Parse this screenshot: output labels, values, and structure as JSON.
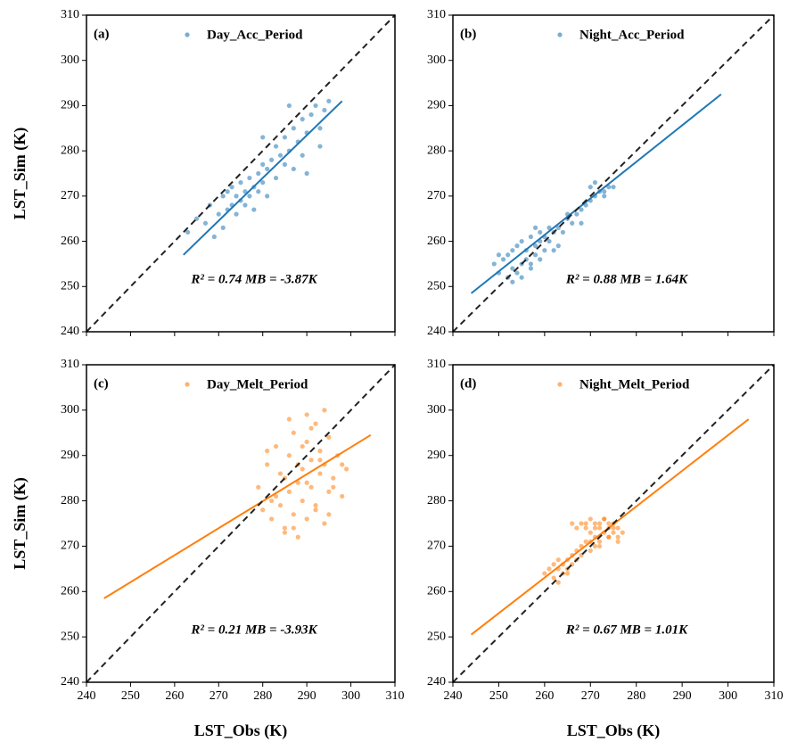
{
  "chart_data": [
    {
      "type": "scatter",
      "panel_label": "(a)",
      "ylabel": "LST_Sim (K)",
      "annotation": "R² = 0.74   MB = -3.87K",
      "xlim": [
        240,
        310
      ],
      "ylim": [
        240,
        310
      ],
      "xticks": [
        240,
        250,
        260,
        270,
        280,
        290,
        300,
        310
      ],
      "yticks": [
        240,
        250,
        260,
        270,
        280,
        290,
        300,
        310
      ],
      "xtick_labels": false,
      "diagonal": true,
      "series": [
        {
          "name": "Day_Acc_Period",
          "color": "#1f77b4",
          "x": [
            263,
            265,
            267,
            268,
            270,
            271,
            272,
            272,
            273,
            273,
            274,
            274,
            275,
            275,
            276,
            276,
            277,
            277,
            278,
            278,
            279,
            279,
            280,
            280,
            281,
            281,
            282,
            283,
            283,
            284,
            285,
            285,
            286,
            287,
            287,
            288,
            289,
            289,
            290,
            291,
            292,
            293,
            294,
            295,
            269,
            271,
            286,
            290,
            293,
            280
          ],
          "y": [
            262,
            265,
            264,
            268,
            266,
            270,
            267,
            271,
            268,
            272,
            266,
            270,
            269,
            273,
            268,
            271,
            270,
            274,
            272,
            267,
            275,
            271,
            273,
            277,
            276,
            270,
            278,
            274,
            281,
            279,
            277,
            283,
            280,
            285,
            276,
            282,
            287,
            279,
            284,
            288,
            290,
            285,
            289,
            291,
            261,
            263,
            290,
            275,
            281,
            283
          ]
        }
      ],
      "fit": {
        "x": [
          262,
          298
        ],
        "y": [
          257,
          291
        ]
      }
    },
    {
      "type": "scatter",
      "panel_label": "(b)",
      "annotation": "R² = 0.88   MB = 1.64K",
      "xlim": [
        240,
        310
      ],
      "ylim": [
        240,
        310
      ],
      "xticks": [
        240,
        250,
        260,
        270,
        280,
        290,
        300,
        310
      ],
      "yticks": [
        240,
        250,
        260,
        270,
        280,
        290,
        300,
        310
      ],
      "xtick_labels": false,
      "diagonal": true,
      "series": [
        {
          "name": "Night_Acc_Period",
          "color": "#1f77b4",
          "x": [
            249,
            250,
            251,
            252,
            252,
            253,
            253,
            254,
            254,
            255,
            255,
            256,
            256,
            257,
            257,
            258,
            258,
            259,
            259,
            260,
            260,
            261,
            262,
            263,
            264,
            265,
            266,
            267,
            268,
            269,
            270,
            271,
            272,
            273,
            274,
            275,
            253,
            255,
            257,
            259,
            261,
            263,
            265,
            268,
            271,
            273,
            250,
            258,
            262,
            270
          ],
          "y": [
            255,
            253,
            256,
            252,
            257,
            254,
            258,
            253,
            259,
            255,
            260,
            256,
            258,
            254,
            261,
            257,
            259,
            256,
            262,
            258,
            261,
            260,
            262,
            263,
            262,
            265,
            264,
            266,
            267,
            268,
            269,
            270,
            271,
            271,
            272,
            272,
            251,
            252,
            255,
            260,
            263,
            259,
            266,
            264,
            273,
            270,
            257,
            263,
            258,
            272
          ]
        }
      ],
      "fit": {
        "x": [
          244,
          298.5
        ],
        "y": [
          248.5,
          292.5
        ]
      }
    },
    {
      "type": "scatter",
      "panel_label": "(c)",
      "ylabel": "LST_Sim (K)",
      "xlabel": "LST_Obs (K)",
      "annotation": "R² = 0.21   MB = -3.93K",
      "xlim": [
        240,
        310
      ],
      "ylim": [
        240,
        310
      ],
      "xticks": [
        240,
        250,
        260,
        270,
        280,
        290,
        300,
        310
      ],
      "yticks": [
        240,
        250,
        260,
        270,
        280,
        290,
        300,
        310
      ],
      "xtick_labels": true,
      "diagonal": true,
      "series": [
        {
          "name": "Day_Melt_Period",
          "color": "#ff7f0e",
          "x": [
            279,
            280,
            281,
            282,
            283,
            283,
            284,
            285,
            285,
            286,
            286,
            287,
            287,
            288,
            288,
            289,
            289,
            290,
            290,
            291,
            291,
            292,
            292,
            293,
            293,
            294,
            294,
            295,
            295,
            296,
            297,
            298,
            299,
            282,
            284,
            286,
            288,
            290,
            292,
            294,
            296,
            289,
            291,
            287,
            293,
            285,
            290,
            295,
            281,
            298
          ],
          "y": [
            283,
            278,
            288,
            276,
            281,
            292,
            279,
            285,
            274,
            290,
            282,
            277,
            295,
            284,
            272,
            287,
            280,
            293,
            276,
            289,
            283,
            297,
            279,
            286,
            291,
            275,
            288,
            294,
            282,
            285,
            290,
            281,
            287,
            280,
            286,
            298,
            288,
            299,
            278,
            300,
            283,
            292,
            296,
            274,
            289,
            273,
            284,
            277,
            291,
            288
          ]
        }
      ],
      "fit": {
        "x": [
          244,
          304.5
        ],
        "y": [
          258.5,
          294.5
        ]
      }
    },
    {
      "type": "scatter",
      "panel_label": "(d)",
      "xlabel": "LST_Obs (K)",
      "annotation": "R² = 0.67   MB = 1.01K",
      "xlim": [
        240,
        310
      ],
      "ylim": [
        240,
        310
      ],
      "xticks": [
        240,
        250,
        260,
        270,
        280,
        290,
        300,
        310
      ],
      "yticks": [
        240,
        250,
        260,
        270,
        280,
        290,
        300,
        310
      ],
      "xtick_labels": true,
      "diagonal": true,
      "series": [
        {
          "name": "Night_Melt_Period",
          "color": "#ff7f0e",
          "x": [
            260,
            261,
            262,
            262,
            263,
            263,
            264,
            264,
            265,
            265,
            266,
            266,
            267,
            267,
            268,
            268,
            269,
            269,
            270,
            270,
            271,
            271,
            272,
            272,
            273,
            273,
            274,
            274,
            275,
            275,
            276,
            276,
            277,
            268,
            269,
            270,
            271,
            272,
            273,
            274,
            275,
            266,
            267,
            270,
            272,
            274,
            276,
            263,
            265,
            271
          ],
          "y": [
            264,
            265,
            263,
            266,
            265,
            267,
            264,
            266,
            267,
            265,
            268,
            266,
            269,
            267,
            270,
            268,
            275,
            271,
            273,
            269,
            274,
            272,
            275,
            271,
            273,
            276,
            272,
            274,
            273,
            275,
            272,
            274,
            273,
            275,
            274,
            276,
            275,
            274,
            276,
            275,
            274,
            275,
            274,
            271,
            270,
            272,
            271,
            262,
            264,
            270
          ]
        }
      ],
      "fit": {
        "x": [
          244,
          304.5
        ],
        "y": [
          250.5,
          298
        ]
      }
    }
  ]
}
